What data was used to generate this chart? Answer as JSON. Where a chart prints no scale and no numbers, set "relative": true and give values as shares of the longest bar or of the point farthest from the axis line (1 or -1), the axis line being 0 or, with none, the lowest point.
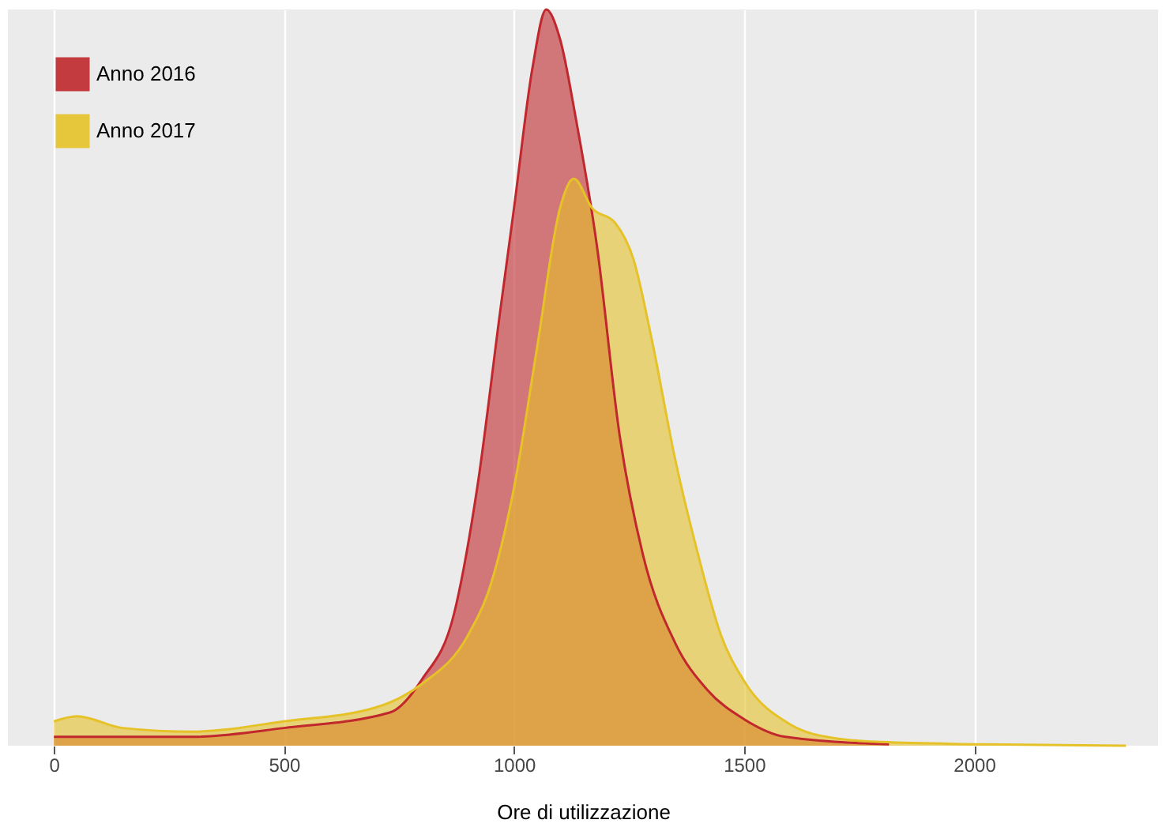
{
  "chart_data": {
    "type": "area",
    "relative": true,
    "xlabel": "Ore di utilizzazione",
    "xlim": [
      -100,
      2400
    ],
    "xticks": [
      0,
      500,
      1000,
      1500,
      2000
    ],
    "grid": "x",
    "legend": "top left",
    "series": [
      {
        "name": "Anno 2016",
        "color": "#c0282d",
        "x": [
          0,
          300,
          500,
          730,
          800,
          870,
          920,
          970,
          1000,
          1040,
          1070,
          1100,
          1135,
          1180,
          1230,
          1280,
          1350,
          1420,
          1500,
          1590,
          1815
        ],
        "values": [
          0.012,
          0.012,
          0.024,
          0.045,
          0.09,
          0.18,
          0.35,
          0.59,
          0.73,
          0.92,
          1.0,
          0.96,
          0.85,
          0.68,
          0.42,
          0.26,
          0.14,
          0.076,
          0.036,
          0.012,
          0.002
        ]
      },
      {
        "name": "Anno 2017",
        "color": "#e6c229",
        "x": [
          0,
          50,
          150,
          300,
          500,
          700,
          800,
          900,
          950,
          1000,
          1050,
          1100,
          1130,
          1170,
          1220,
          1260,
          1300,
          1350,
          1400,
          1450,
          1500,
          1600,
          1700,
          1800,
          2000,
          2330
        ],
        "values": [
          0.033,
          0.04,
          0.024,
          0.019,
          0.033,
          0.052,
          0.084,
          0.15,
          0.22,
          0.35,
          0.54,
          0.73,
          0.77,
          0.73,
          0.71,
          0.66,
          0.55,
          0.39,
          0.26,
          0.15,
          0.088,
          0.029,
          0.01,
          0.005,
          0.002,
          0
        ]
      }
    ]
  }
}
